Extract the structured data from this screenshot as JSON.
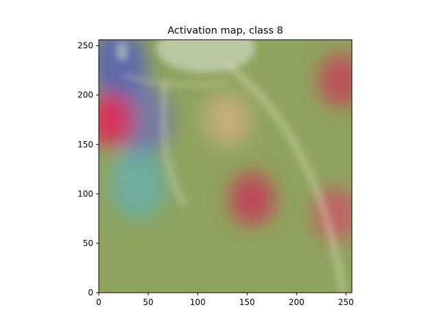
{
  "chart_data": {
    "type": "heatmap",
    "title": "Activation map, class 8",
    "xlabel": "",
    "ylabel": "",
    "xlim": [
      0,
      256
    ],
    "ylim": [
      256,
      0
    ],
    "x_ticks": [
      0,
      50,
      100,
      150,
      200,
      250
    ],
    "y_ticks": [
      0,
      50,
      100,
      150,
      200,
      250
    ],
    "grid": false,
    "colormap": "jet overlay on grayscale chest x-ray",
    "base_color": "#8fa45e",
    "hotspots": [
      {
        "x": 155,
        "y": 95,
        "intensity": 0.95,
        "color": "#c0475a"
      },
      {
        "x": 240,
        "y": 80,
        "intensity": 0.85,
        "color": "#c65a66"
      },
      {
        "x": 245,
        "y": 215,
        "intensity": 0.9,
        "color": "#c04a5a"
      },
      {
        "x": 12,
        "y": 175,
        "intensity": 0.95,
        "color": "#d8305a"
      },
      {
        "x": 130,
        "y": 175,
        "intensity": 0.6,
        "color": "#e6b487"
      }
    ],
    "coldspots": [
      {
        "x": 20,
        "y": 230,
        "intensity": 0.9,
        "color": "#5a64b4"
      },
      {
        "x": 45,
        "y": 175,
        "intensity": 0.7,
        "color": "#6a6ac0"
      },
      {
        "x": 40,
        "y": 110,
        "intensity": 0.6,
        "color": "#58b4c8"
      }
    ]
  }
}
